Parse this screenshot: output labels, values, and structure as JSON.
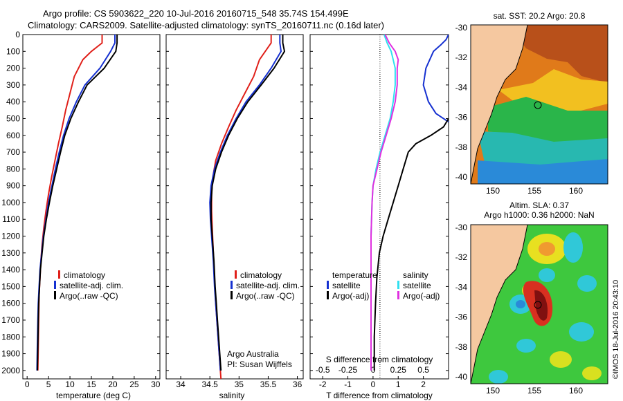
{
  "header": {
    "line1": "Argo profile: CS 5903622_220 10-Jul-2016 20160715_548 35.74S 154.499E",
    "line2": "Climatology: CARS2009. Satellite-adjusted climatology: synTS_20160711.nc (0.16d later)"
  },
  "colors": {
    "climatology": "#e0201a",
    "satellite": "#1530d0",
    "argo": "#000000",
    "s_satellite": "#30e0f0",
    "s_argo": "#e030e0",
    "land": "#f5c8a0"
  },
  "depth_ticks": [
    "0",
    "100",
    "200",
    "300",
    "400",
    "500",
    "600",
    "700",
    "800",
    "900",
    "1000",
    "1100",
    "1200",
    "1300",
    "1400",
    "1500",
    "1600",
    "1700",
    "1800",
    "1900",
    "2000"
  ],
  "temperature_panel": {
    "xlabel": "temperature (deg C)",
    "xticks": [
      "0",
      "5",
      "10",
      "15",
      "20",
      "25",
      "30"
    ],
    "legend": [
      "climatology",
      "satellite-adj. clim.",
      "Argo(..raw -QC)"
    ]
  },
  "salinity_panel": {
    "xlabel": "salinity",
    "xticks": [
      "34",
      "34.5",
      "35",
      "35.5",
      "36"
    ],
    "legend": [
      "climatology",
      "satellite-adj. clim.",
      "Argo(..raw -QC)"
    ],
    "credit1": "Argo Australia",
    "credit2": "PI: Susan Wijffels"
  },
  "difference_panel": {
    "xlabel": "T difference from climatology",
    "xticks": [
      "-2",
      "-1",
      "0",
      "1",
      "2"
    ],
    "top_label": "S difference from climatology",
    "top_ticks": [
      "-0.5",
      "-0.25",
      "0",
      "0.25",
      "0.5"
    ],
    "legend_t_title": "temperature",
    "legend_t": [
      "satellite",
      "Argo(-adj)"
    ],
    "legend_s_title": "salinity",
    "legend_s": [
      "satellite",
      "Argo(-adj)"
    ]
  },
  "sst_map": {
    "title": "sat. SST: 20.2  Argo: 20.8",
    "lat_ticks": [
      "-30",
      "-32",
      "-34",
      "-36",
      "-38",
      "-40"
    ],
    "lon_ticks": [
      "150",
      "155",
      "160"
    ]
  },
  "sla_map": {
    "title1": "Altim. SLA: 0.37",
    "title2": "Argo h1000: 0.36 h2000: NaN",
    "lat_ticks": [
      "-30",
      "-32",
      "-34",
      "-36",
      "-38",
      "-40"
    ],
    "lon_ticks": [
      "150",
      "155",
      "160"
    ]
  },
  "side_text": "©IMOS 18-Jul-2016 20:43:10",
  "chart_data": [
    {
      "type": "line",
      "name": "temperature",
      "xlim": [
        -1,
        31
      ],
      "ylim": [
        2050,
        0
      ],
      "series": [
        {
          "name": "climatology",
          "x": [
            17.5,
            17.5,
            15,
            13,
            11,
            10,
            9,
            8.2,
            7.3,
            6.5,
            5.7,
            5.0,
            4.4,
            3.9,
            3.5,
            3.2,
            3.0,
            2.8,
            2.7,
            2.6,
            2.5
          ],
          "y": [
            0,
            50,
            100,
            150,
            250,
            350,
            450,
            550,
            650,
            750,
            850,
            950,
            1050,
            1150,
            1250,
            1350,
            1450,
            1550,
            1700,
            1850,
            2000
          ]
        },
        {
          "name": "satellite-adj. clim.",
          "x": [
            20.5,
            20.5,
            19.5,
            17,
            13.5,
            11.5,
            9.8,
            8.5,
            7.5,
            6.6,
            5.8,
            5.0,
            4.4,
            3.8,
            3.4,
            3.0,
            2.8,
            2.6,
            2.5,
            2.4,
            2.3
          ],
          "y": [
            0,
            50,
            100,
            200,
            300,
            400,
            500,
            600,
            700,
            800,
            900,
            1000,
            1100,
            1200,
            1300,
            1400,
            1500,
            1600,
            1700,
            1850,
            2000
          ]
        },
        {
          "name": "Argo(..raw -QC)",
          "x": [
            21.0,
            21.0,
            20.7,
            18,
            14,
            12,
            10.2,
            8.8,
            7.8,
            6.9,
            6.0,
            5.2,
            4.5,
            3.9,
            3.5,
            3.1,
            2.9,
            2.7,
            2.6,
            2.5,
            2.4
          ],
          "y": [
            0,
            50,
            100,
            200,
            300,
            400,
            500,
            600,
            700,
            800,
            900,
            1000,
            1100,
            1200,
            1300,
            1400,
            1500,
            1600,
            1700,
            1850,
            2000
          ]
        }
      ]
    },
    {
      "type": "line",
      "name": "salinity",
      "xlim": [
        33.75,
        36.1
      ],
      "ylim": [
        2050,
        0
      ],
      "series": [
        {
          "name": "climatology",
          "x": [
            35.55,
            35.55,
            35.45,
            35.35,
            35.25,
            35.1,
            34.95,
            34.82,
            34.7,
            34.6,
            34.55,
            34.53,
            34.53,
            34.54,
            34.56,
            34.58,
            34.6,
            34.63,
            34.65,
            34.67,
            34.69
          ],
          "y": [
            0,
            50,
            100,
            150,
            250,
            350,
            450,
            550,
            650,
            750,
            850,
            950,
            1050,
            1150,
            1300,
            1450,
            1600,
            1750,
            1850,
            1950,
            2050
          ]
        },
        {
          "name": "satellite-adj. clim.",
          "x": [
            35.7,
            35.7,
            35.72,
            35.55,
            35.35,
            35.12,
            34.95,
            34.8,
            34.68,
            34.58,
            34.52,
            34.5,
            34.51,
            34.53,
            34.56,
            34.58,
            34.6,
            34.62,
            34.64,
            34.66,
            34.68
          ],
          "y": [
            0,
            50,
            100,
            200,
            300,
            400,
            500,
            600,
            700,
            800,
            900,
            1000,
            1100,
            1200,
            1350,
            1500,
            1600,
            1700,
            1800,
            1900,
            2000
          ]
        },
        {
          "name": "Argo(..raw -QC)",
          "x": [
            35.75,
            35.75,
            35.78,
            35.6,
            35.38,
            35.15,
            34.97,
            34.82,
            34.7,
            34.6,
            34.54,
            34.52,
            34.52,
            34.54,
            34.57,
            34.59,
            34.61,
            34.63,
            34.65,
            34.67,
            34.69
          ],
          "y": [
            0,
            50,
            100,
            200,
            300,
            400,
            500,
            600,
            700,
            800,
            900,
            1000,
            1100,
            1200,
            1350,
            1500,
            1600,
            1700,
            1800,
            1900,
            2000
          ]
        }
      ]
    },
    {
      "type": "line",
      "name": "difference",
      "xlim_T": [
        -2.5,
        3.0
      ],
      "xlim_S": [
        -0.625,
        0.75
      ],
      "ylim": [
        2050,
        0
      ],
      "series": [
        {
          "name": "T satellite",
          "axis": "T",
          "x": [
            3.0,
            2.9,
            2.7,
            2.4,
            2.1,
            2.0,
            2.2,
            2.5,
            3.0
          ],
          "y": [
            0,
            30,
            60,
            100,
            200,
            300,
            400,
            470,
            520
          ]
        },
        {
          "name": "T Argo(-adj)",
          "axis": "T",
          "x": [
            3.0,
            2.8,
            2.3,
            1.7,
            1.4,
            1.2,
            1.0,
            0.8,
            0.6,
            0.4,
            0.25,
            0.15,
            0.1,
            0.05,
            0.05
          ],
          "y": [
            500,
            550,
            600,
            650,
            700,
            800,
            900,
            1000,
            1100,
            1200,
            1300,
            1450,
            1600,
            1800,
            2000
          ]
        },
        {
          "name": "S satellite",
          "axis": "S",
          "x": [
            0.11,
            0.14,
            0.18,
            0.2,
            0.22,
            0.22,
            0.2,
            0.17,
            0.12,
            0.07,
            0.03,
            0.0,
            -0.01,
            -0.02,
            -0.02,
            -0.02,
            -0.02
          ],
          "y": [
            0,
            50,
            100,
            150,
            200,
            300,
            400,
            500,
            600,
            700,
            800,
            900,
            1000,
            1200,
            1400,
            1700,
            2000
          ]
        },
        {
          "name": "S Argo(-adj)",
          "axis": "S",
          "x": [
            0.12,
            0.16,
            0.22,
            0.25,
            0.24,
            0.24,
            0.22,
            0.18,
            0.13,
            0.08,
            0.04,
            0.0,
            -0.01,
            -0.02,
            -0.02,
            -0.02,
            -0.02
          ],
          "y": [
            0,
            50,
            100,
            150,
            200,
            300,
            400,
            500,
            600,
            700,
            800,
            900,
            1000,
            1200,
            1400,
            1700,
            2000
          ]
        }
      ]
    }
  ]
}
